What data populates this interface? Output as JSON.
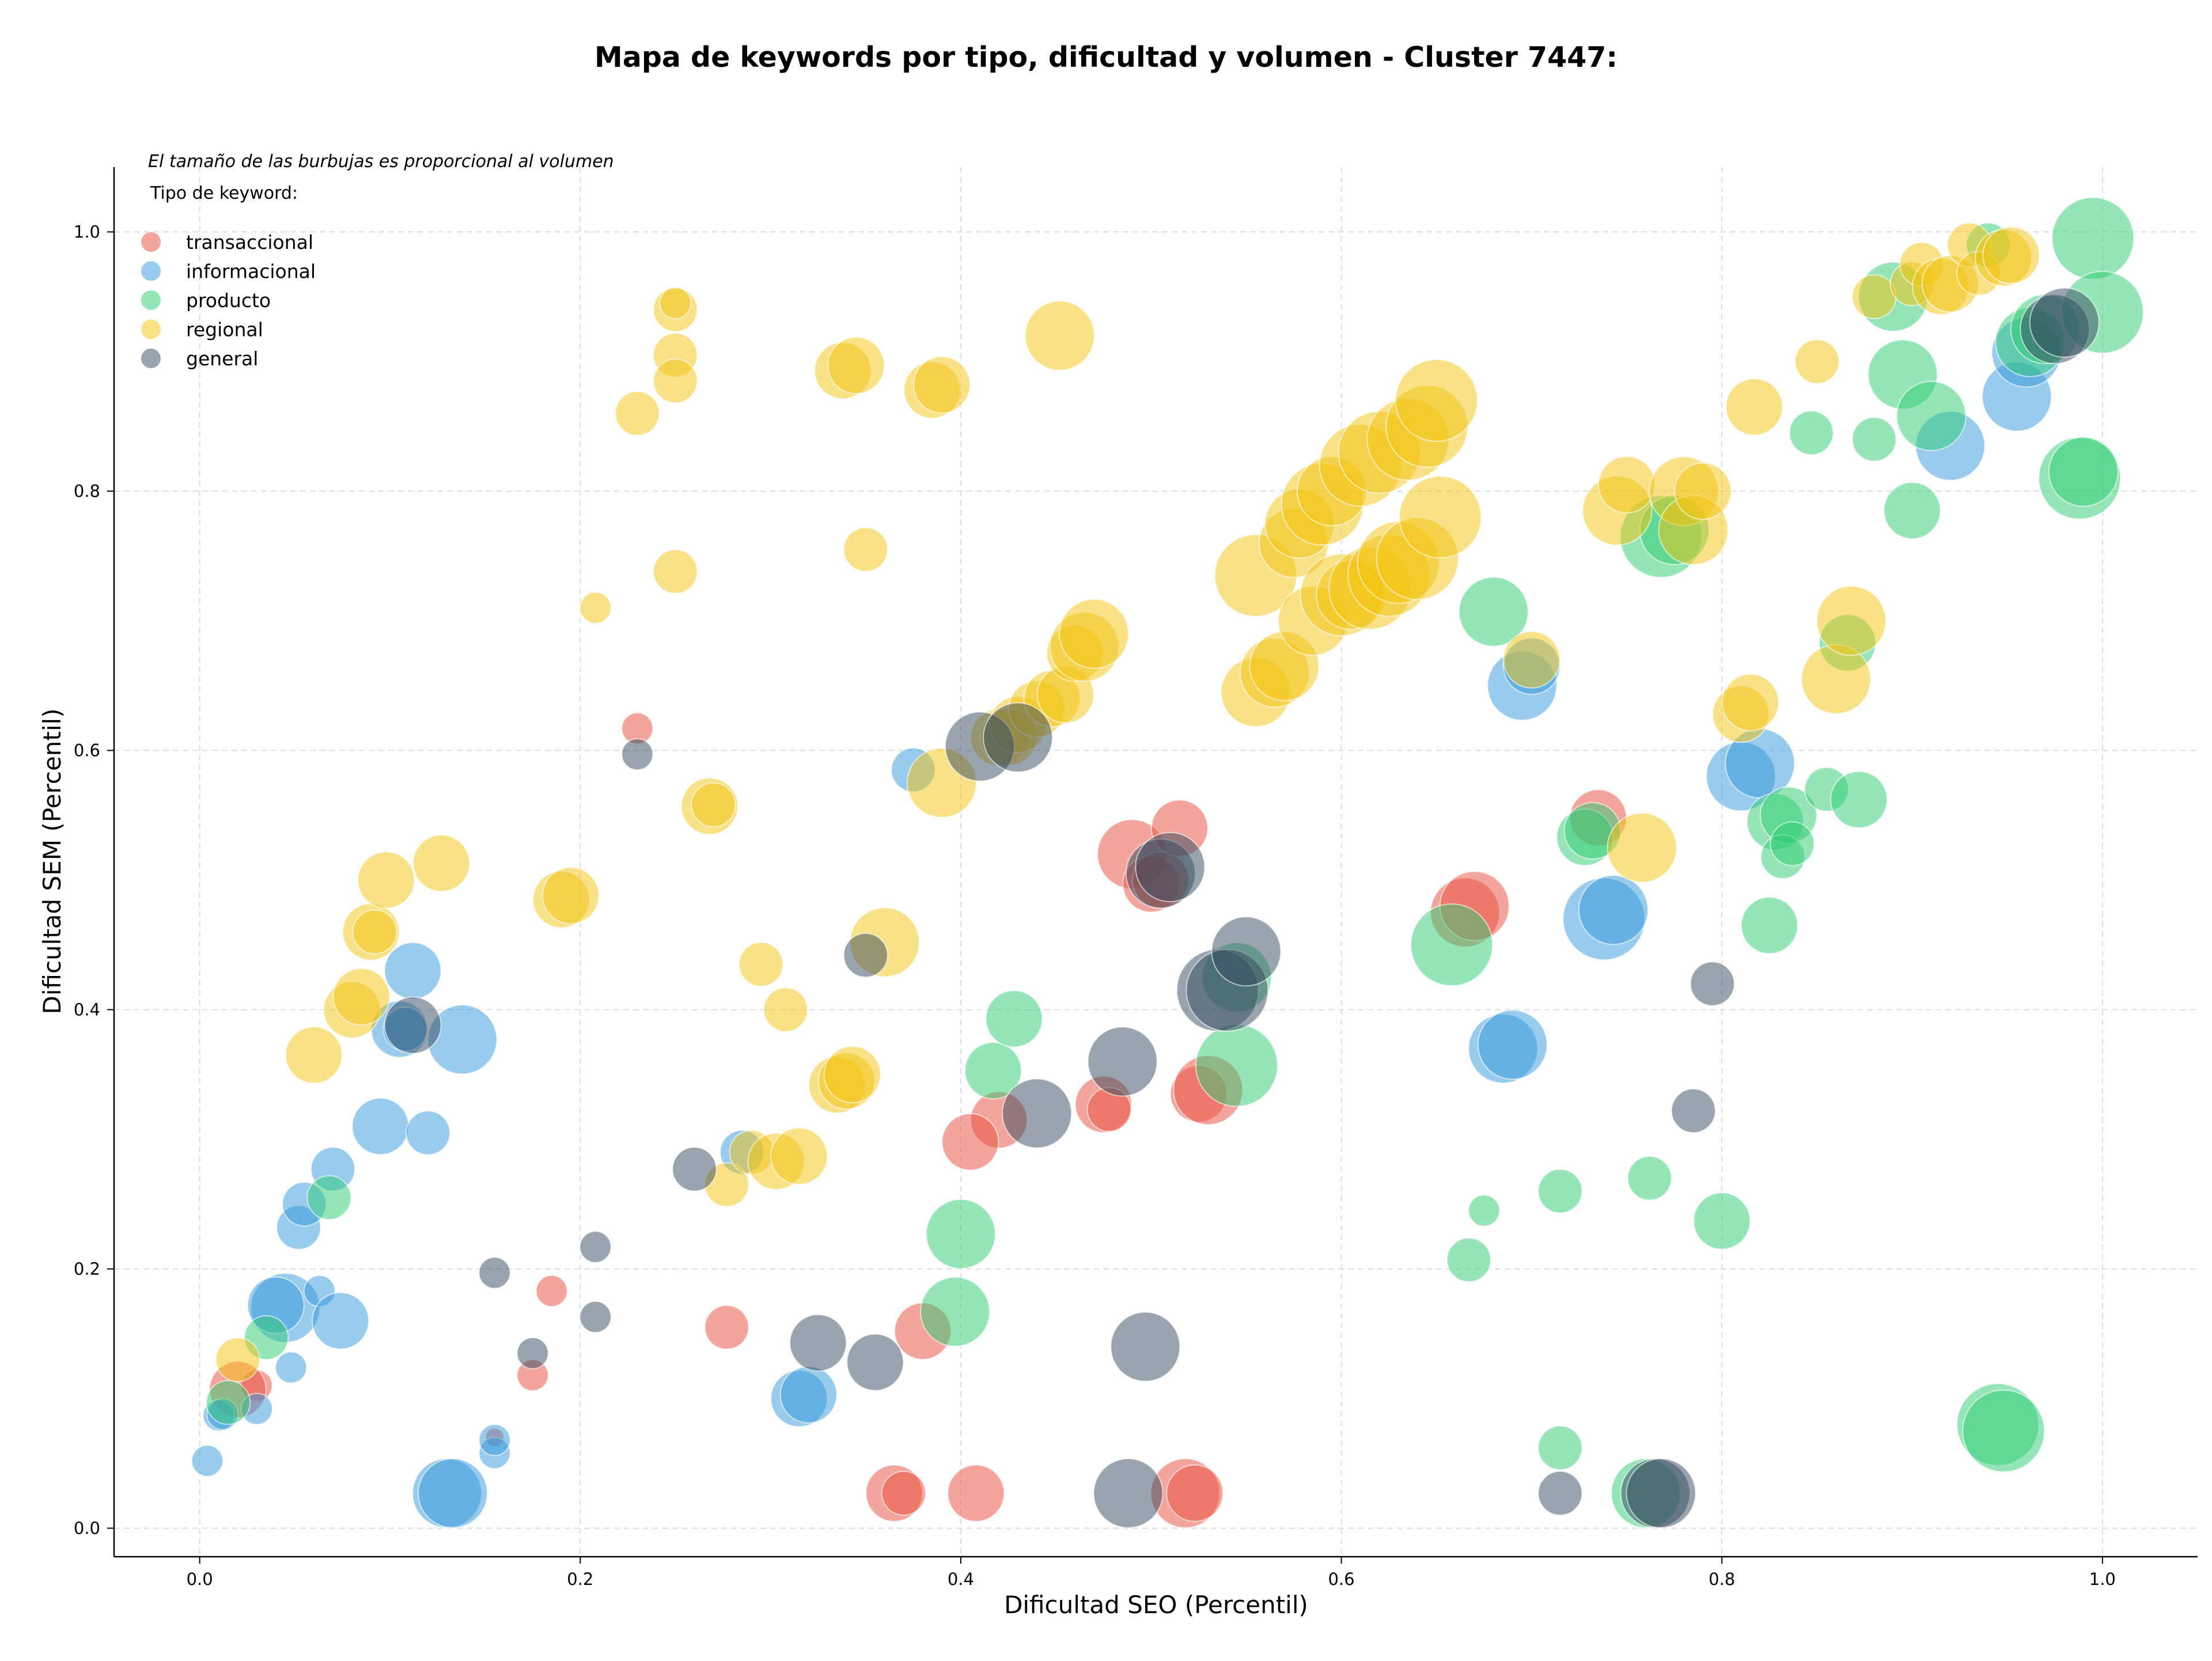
{
  "chart_data": {
    "type": "scatter",
    "title": "Mapa de keywords por tipo, dificultad y volumen - Cluster 7447:",
    "xlabel": "Dificultad SEO (Percentil)",
    "ylabel": "Dificultad SEM (Percentil)",
    "xlim": [
      -0.045,
      1.05
    ],
    "ylim": [
      -0.022,
      1.05
    ],
    "xticks": [
      "0.0",
      "0.2",
      "0.4",
      "0.6",
      "0.8",
      "1.0"
    ],
    "yticks": [
      "0.0",
      "0.2",
      "0.4",
      "0.6",
      "0.8",
      "1.0"
    ],
    "grid": true,
    "legend": {
      "placement": "top-left",
      "note": "El tamaño de las burbujas es proporcional al volumen",
      "title": "Tipo de keyword:"
    },
    "series": [
      {
        "name": "transaccional",
        "color": "#e74c3c",
        "points": [
          [
            0.03,
            0.11,
            2
          ],
          [
            0.02,
            0.107,
            4
          ],
          [
            0.23,
            0.617,
            2
          ],
          [
            0.155,
            0.07,
            1
          ],
          [
            0.185,
            0.183,
            2
          ],
          [
            0.175,
            0.118,
            2
          ],
          [
            0.277,
            0.155,
            3
          ],
          [
            0.38,
            0.152,
            4
          ],
          [
            0.365,
            0.027,
            4
          ],
          [
            0.37,
            0.027,
            3
          ],
          [
            0.408,
            0.027,
            4
          ],
          [
            0.42,
            0.315,
            4
          ],
          [
            0.405,
            0.298,
            4
          ],
          [
            0.475,
            0.327,
            4
          ],
          [
            0.478,
            0.323,
            3
          ],
          [
            0.49,
            0.52,
            5
          ],
          [
            0.5,
            0.497,
            4
          ],
          [
            0.505,
            0.5,
            4
          ],
          [
            0.515,
            0.54,
            4
          ],
          [
            0.525,
            0.335,
            4
          ],
          [
            0.53,
            0.338,
            5
          ],
          [
            0.518,
            0.027,
            5
          ],
          [
            0.523,
            0.027,
            4
          ],
          [
            0.665,
            0.475,
            5
          ],
          [
            0.67,
            0.48,
            5
          ],
          [
            0.735,
            0.548,
            4
          ]
        ]
      },
      {
        "name": "informacional",
        "color": "#3498db",
        "points": [
          [
            0.004,
            0.052,
            2
          ],
          [
            0.01,
            0.087,
            2
          ],
          [
            0.012,
            0.088,
            2
          ],
          [
            0.03,
            0.092,
            2
          ],
          [
            0.045,
            0.17,
            5
          ],
          [
            0.04,
            0.172,
            4
          ],
          [
            0.048,
            0.124,
            2
          ],
          [
            0.052,
            0.232,
            3
          ],
          [
            0.055,
            0.25,
            3
          ],
          [
            0.063,
            0.183,
            2
          ],
          [
            0.07,
            0.277,
            3
          ],
          [
            0.074,
            0.16,
            4
          ],
          [
            0.095,
            0.31,
            4
          ],
          [
            0.105,
            0.385,
            4
          ],
          [
            0.108,
            0.385,
            3
          ],
          [
            0.112,
            0.43,
            4
          ],
          [
            0.12,
            0.305,
            3
          ],
          [
            0.13,
            0.027,
            5
          ],
          [
            0.133,
            0.027,
            5
          ],
          [
            0.138,
            0.377,
            5
          ],
          [
            0.155,
            0.058,
            2
          ],
          [
            0.155,
            0.068,
            2
          ],
          [
            0.315,
            0.1,
            4
          ],
          [
            0.32,
            0.103,
            4
          ],
          [
            0.285,
            0.29,
            3
          ],
          [
            0.375,
            0.585,
            3
          ],
          [
            0.695,
            0.65,
            5
          ],
          [
            0.7,
            0.665,
            4
          ],
          [
            0.685,
            0.37,
            5
          ],
          [
            0.69,
            0.373,
            5
          ],
          [
            0.738,
            0.47,
            6
          ],
          [
            0.743,
            0.477,
            5
          ],
          [
            0.81,
            0.58,
            5
          ],
          [
            0.82,
            0.59,
            5
          ],
          [
            0.92,
            0.835,
            5
          ],
          [
            0.955,
            0.873,
            5
          ],
          [
            0.96,
            0.907,
            5
          ]
        ]
      },
      {
        "name": "producto",
        "color": "#2ecc71",
        "points": [
          [
            0.015,
            0.097,
            3
          ],
          [
            0.035,
            0.147,
            3
          ],
          [
            0.068,
            0.255,
            3
          ],
          [
            0.4,
            0.227,
            5
          ],
          [
            0.397,
            0.167,
            5
          ],
          [
            0.417,
            0.353,
            4
          ],
          [
            0.428,
            0.393,
            4
          ],
          [
            0.545,
            0.425,
            5
          ],
          [
            0.545,
            0.357,
            6
          ],
          [
            0.658,
            0.45,
            6
          ],
          [
            0.68,
            0.707,
            5
          ],
          [
            0.675,
            0.245,
            2
          ],
          [
            0.667,
            0.207,
            3
          ],
          [
            0.715,
            0.26,
            3
          ],
          [
            0.715,
            0.062,
            3
          ],
          [
            0.728,
            0.533,
            4
          ],
          [
            0.732,
            0.538,
            4
          ],
          [
            0.762,
            0.27,
            3
          ],
          [
            0.76,
            0.027,
            5
          ],
          [
            0.768,
            0.765,
            6
          ],
          [
            0.775,
            0.77,
            5
          ],
          [
            0.8,
            0.237,
            4
          ],
          [
            0.825,
            0.465,
            4
          ],
          [
            0.828,
            0.545,
            4
          ],
          [
            0.835,
            0.55,
            4
          ],
          [
            0.832,
            0.518,
            3
          ],
          [
            0.837,
            0.528,
            3
          ],
          [
            0.847,
            0.845,
            3
          ],
          [
            0.855,
            0.57,
            3
          ],
          [
            0.866,
            0.683,
            4
          ],
          [
            0.872,
            0.562,
            4
          ],
          [
            0.88,
            0.84,
            3
          ],
          [
            0.89,
            0.95,
            5
          ],
          [
            0.895,
            0.89,
            5
          ],
          [
            0.9,
            0.785,
            4
          ],
          [
            0.91,
            0.858,
            5
          ],
          [
            0.94,
            0.99,
            3
          ],
          [
            0.945,
            0.08,
            6
          ],
          [
            0.948,
            0.075,
            6
          ],
          [
            0.962,
            0.915,
            5
          ],
          [
            0.97,
            0.925,
            5
          ],
          [
            0.988,
            0.81,
            6
          ],
          [
            0.99,
            0.815,
            5
          ],
          [
            0.995,
            0.995,
            6
          ],
          [
            1.0,
            0.938,
            6
          ]
        ]
      },
      {
        "name": "regional",
        "color": "#f1c40f",
        "points": [
          [
            0.02,
            0.13,
            3
          ],
          [
            0.06,
            0.365,
            4
          ],
          [
            0.08,
            0.4,
            4
          ],
          [
            0.085,
            0.41,
            4
          ],
          [
            0.09,
            0.46,
            4
          ],
          [
            0.092,
            0.46,
            3
          ],
          [
            0.098,
            0.5,
            4
          ],
          [
            0.127,
            0.513,
            4
          ],
          [
            0.19,
            0.485,
            4
          ],
          [
            0.195,
            0.488,
            4
          ],
          [
            0.208,
            0.71,
            2
          ],
          [
            0.23,
            0.86,
            3
          ],
          [
            0.25,
            0.94,
            3
          ],
          [
            0.25,
            0.945,
            2
          ],
          [
            0.25,
            0.905,
            3
          ],
          [
            0.25,
            0.885,
            3
          ],
          [
            0.25,
            0.738,
            3
          ],
          [
            0.268,
            0.557,
            4
          ],
          [
            0.27,
            0.558,
            3
          ],
          [
            0.277,
            0.265,
            3
          ],
          [
            0.29,
            0.29,
            3
          ],
          [
            0.295,
            0.435,
            3
          ],
          [
            0.303,
            0.283,
            4
          ],
          [
            0.308,
            0.4,
            3
          ],
          [
            0.315,
            0.287,
            4
          ],
          [
            0.335,
            0.342,
            4
          ],
          [
            0.338,
            0.893,
            4
          ],
          [
            0.34,
            0.345,
            4
          ],
          [
            0.343,
            0.35,
            4
          ],
          [
            0.345,
            0.897,
            4
          ],
          [
            0.35,
            0.755,
            3
          ],
          [
            0.36,
            0.452,
            5
          ],
          [
            0.385,
            0.878,
            4
          ],
          [
            0.39,
            0.575,
            5
          ],
          [
            0.39,
            0.882,
            4
          ],
          [
            0.42,
            0.61,
            4
          ],
          [
            0.425,
            0.61,
            4
          ],
          [
            0.43,
            0.62,
            4
          ],
          [
            0.44,
            0.632,
            4
          ],
          [
            0.448,
            0.64,
            4
          ],
          [
            0.455,
            0.643,
            4
          ],
          [
            0.452,
            0.92,
            5
          ],
          [
            0.46,
            0.675,
            4
          ],
          [
            0.465,
            0.68,
            5
          ],
          [
            0.47,
            0.69,
            5
          ],
          [
            0.555,
            0.735,
            6
          ],
          [
            0.555,
            0.645,
            5
          ],
          [
            0.565,
            0.66,
            5
          ],
          [
            0.57,
            0.665,
            5
          ],
          [
            0.575,
            0.76,
            5
          ],
          [
            0.578,
            0.775,
            5
          ],
          [
            0.585,
            0.7,
            5
          ],
          [
            0.59,
            0.79,
            6
          ],
          [
            0.595,
            0.8,
            5
          ],
          [
            0.6,
            0.72,
            6
          ],
          [
            0.605,
            0.72,
            5
          ],
          [
            0.61,
            0.82,
            6
          ],
          [
            0.615,
            0.725,
            6
          ],
          [
            0.62,
            0.83,
            6
          ],
          [
            0.625,
            0.735,
            6
          ],
          [
            0.63,
            0.745,
            6
          ],
          [
            0.635,
            0.84,
            6
          ],
          [
            0.64,
            0.748,
            6
          ],
          [
            0.645,
            0.85,
            6
          ],
          [
            0.65,
            0.87,
            6
          ],
          [
            0.652,
            0.78,
            6
          ],
          [
            0.7,
            0.67,
            4
          ],
          [
            0.745,
            0.785,
            5
          ],
          [
            0.75,
            0.805,
            4
          ],
          [
            0.758,
            0.525,
            5
          ],
          [
            0.78,
            0.8,
            5
          ],
          [
            0.785,
            0.77,
            5
          ],
          [
            0.79,
            0.8,
            4
          ],
          [
            0.81,
            0.628,
            4
          ],
          [
            0.815,
            0.637,
            4
          ],
          [
            0.817,
            0.865,
            4
          ],
          [
            0.85,
            0.9,
            3
          ],
          [
            0.86,
            0.655,
            5
          ],
          [
            0.868,
            0.7,
            5
          ],
          [
            0.88,
            0.95,
            3
          ],
          [
            0.9,
            0.96,
            3
          ],
          [
            0.905,
            0.975,
            3
          ],
          [
            0.915,
            0.958,
            4
          ],
          [
            0.92,
            0.96,
            4
          ],
          [
            0.93,
            0.99,
            3
          ],
          [
            0.935,
            0.968,
            3
          ],
          [
            0.948,
            0.98,
            4
          ],
          [
            0.952,
            0.982,
            4
          ]
        ]
      },
      {
        "name": "general",
        "color": "#34495e",
        "points": [
          [
            0.112,
            0.388,
            4
          ],
          [
            0.155,
            0.197,
            2
          ],
          [
            0.175,
            0.135,
            2
          ],
          [
            0.208,
            0.217,
            2
          ],
          [
            0.208,
            0.163,
            2
          ],
          [
            0.23,
            0.597,
            2
          ],
          [
            0.26,
            0.277,
            3
          ],
          [
            0.325,
            0.143,
            4
          ],
          [
            0.355,
            0.128,
            4
          ],
          [
            0.35,
            0.442,
            3
          ],
          [
            0.41,
            0.603,
            5
          ],
          [
            0.43,
            0.61,
            5
          ],
          [
            0.44,
            0.32,
            5
          ],
          [
            0.485,
            0.36,
            5
          ],
          [
            0.488,
            0.027,
            5
          ],
          [
            0.497,
            0.14,
            5
          ],
          [
            0.505,
            0.505,
            5
          ],
          [
            0.51,
            0.51,
            5
          ],
          [
            0.535,
            0.415,
            6
          ],
          [
            0.54,
            0.415,
            6
          ],
          [
            0.55,
            0.445,
            5
          ],
          [
            0.715,
            0.027,
            3
          ],
          [
            0.765,
            0.027,
            5
          ],
          [
            0.768,
            0.027,
            5
          ],
          [
            0.785,
            0.322,
            3
          ],
          [
            0.795,
            0.42,
            3
          ],
          [
            0.975,
            0.925,
            5
          ],
          [
            0.98,
            0.93,
            5
          ]
        ]
      }
    ]
  }
}
